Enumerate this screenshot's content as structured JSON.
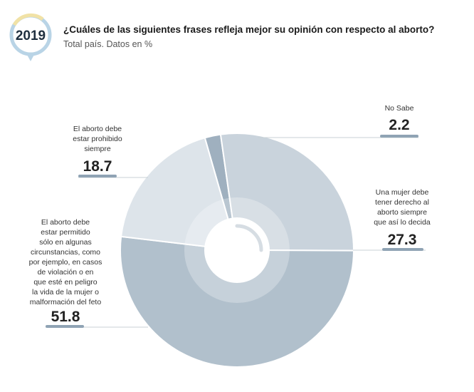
{
  "header": {
    "year": "2019",
    "title": "¿Cuáles de las siguientes frases refleja mejor su opinión con respecto al aborto?",
    "subtitle": "Total país. Datos en %"
  },
  "colors": {
    "badge_ring_blue": "#b9d4e6",
    "badge_ring_yellow": "#f1e2a6",
    "connector_line": "#c8d0d6",
    "label_underline": "#8fa3b4"
  },
  "chart_data": {
    "type": "pie",
    "style": "donut",
    "title": "¿Cuáles de las siguientes frases refleja mejor su opinión con respecto al aborto?",
    "subtitle": "Total país. Datos en %",
    "slices": [
      {
        "label": "No Sabe",
        "value": 2.2,
        "color": "#9fb0bf"
      },
      {
        "label": "Una mujer debe tener derecho al aborto siempre que así lo decida",
        "value": 27.3,
        "color": "#c9d3dc"
      },
      {
        "label": "El aborto debe estar permitido sólo en algunas circunstancias, como por ejemplo, en casos de violación o en que esté en peligro la vida de la mujer o malformación del feto",
        "value": 51.8,
        "color": "#b1c0cc"
      },
      {
        "label": "El aborto debe estar prohibido siempre",
        "value": 18.7,
        "color": "#dde4ea"
      }
    ]
  },
  "labels": {
    "no_sabe": {
      "lines": [
        "No Sabe"
      ],
      "value": "2.2"
    },
    "derecho": {
      "lines": [
        "Una mujer debe",
        "tener derecho al",
        "aborto siempre",
        "que así lo decida"
      ],
      "value": "27.3"
    },
    "permitido": {
      "lines": [
        "El aborto debe",
        "estar permitido",
        "sólo en algunas",
        "circunstancias, como",
        "por ejemplo, en casos",
        "de violación  o en",
        "que esté en peligro",
        "la vida de la mujer o",
        "malformación del feto"
      ],
      "value": "51.8"
    },
    "prohibido": {
      "lines": [
        "El aborto debe",
        "estar prohibido",
        "siempre"
      ],
      "value": "18.7"
    }
  }
}
